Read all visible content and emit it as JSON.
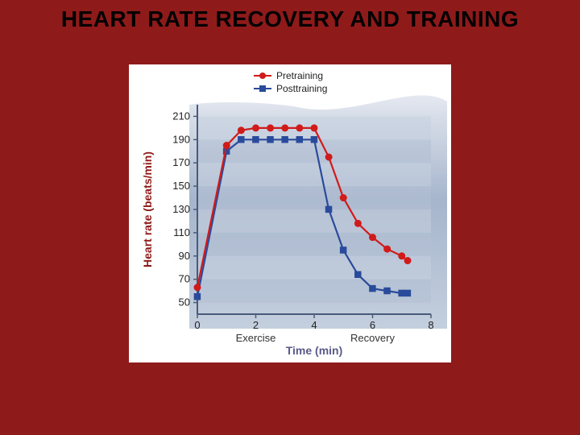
{
  "title": "HEART RATE RECOVERY AND TRAINING",
  "chart": {
    "type": "line",
    "background_outer": "#ffffff",
    "plot_bg_top": "#eef1f6",
    "plot_bg_mid": "#9fafc8",
    "plot_bg_band": "#b9c6d8",
    "axis_color": "#4a5b7a",
    "text_color": "#595a8a",
    "accent_color": "#8e1a1a",
    "grid_band_a": "#b2bfd3",
    "grid_band_b": "#c4cfde",
    "x": {
      "label": "Time (min)",
      "ticks": [
        0,
        2,
        4,
        6,
        8
      ],
      "lim": [
        0,
        8
      ],
      "annotations": [
        {
          "label": "Exercise",
          "at": 2
        },
        {
          "label": "Recovery",
          "at": 6
        }
      ]
    },
    "y": {
      "label": "Heart rate (beats/min)",
      "ticks": [
        50,
        70,
        90,
        110,
        130,
        150,
        170,
        190,
        210
      ],
      "lim": [
        40,
        220
      ]
    },
    "legend": {
      "position": "top-center",
      "items": [
        {
          "label": "Pretraining",
          "color": "#d11b1b",
          "marker": "circle"
        },
        {
          "label": "Posttraining",
          "color": "#2a4b9b",
          "marker": "square"
        }
      ]
    },
    "series": [
      {
        "name": "Pretraining",
        "color": "#d11b1b",
        "marker": "circle",
        "line_width": 2.2,
        "marker_size": 5,
        "points": [
          [
            0,
            63
          ],
          [
            1,
            185
          ],
          [
            1.5,
            198
          ],
          [
            2,
            200
          ],
          [
            2.5,
            200
          ],
          [
            3,
            200
          ],
          [
            3.5,
            200
          ],
          [
            4,
            200
          ],
          [
            4.5,
            175
          ],
          [
            5,
            140
          ],
          [
            5.5,
            118
          ],
          [
            6,
            106
          ],
          [
            6.5,
            96
          ],
          [
            7,
            90
          ],
          [
            7.2,
            86
          ]
        ]
      },
      {
        "name": "Posttraining",
        "color": "#2a4b9b",
        "marker": "square",
        "line_width": 2.2,
        "marker_size": 5,
        "points": [
          [
            0,
            55
          ],
          [
            1,
            180
          ],
          [
            1.5,
            190
          ],
          [
            2,
            190
          ],
          [
            2.5,
            190
          ],
          [
            3,
            190
          ],
          [
            3.5,
            190
          ],
          [
            4,
            190
          ],
          [
            4.5,
            130
          ],
          [
            5,
            95
          ],
          [
            5.5,
            74
          ],
          [
            6,
            62
          ],
          [
            6.5,
            60
          ],
          [
            7,
            58
          ],
          [
            7.2,
            58
          ]
        ]
      }
    ]
  }
}
